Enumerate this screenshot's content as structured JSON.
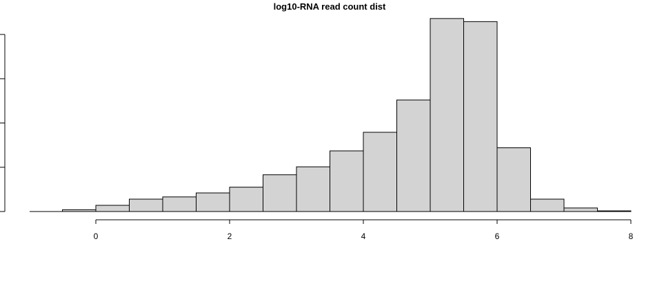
{
  "chart_data": {
    "type": "bar",
    "title": "log10-RNA read count dist",
    "xlabel": "",
    "ylabel": "",
    "xlim": [
      -1,
      8
    ],
    "ylim": [
      0,
      4000
    ],
    "x_ticks": [
      0,
      2,
      4,
      6,
      8
    ],
    "x_tick_labels": [
      "0",
      "2",
      "4",
      "6",
      "8"
    ],
    "y_ticks": [
      0,
      1000,
      2000,
      3000,
      4000
    ],
    "bin_width": 0.5,
    "bins": [
      {
        "start": -0.5,
        "end": 0.0,
        "value": 40
      },
      {
        "start": 0.0,
        "end": 0.5,
        "value": 140
      },
      {
        "start": 0.5,
        "end": 1.0,
        "value": 280
      },
      {
        "start": 1.0,
        "end": 1.5,
        "value": 330
      },
      {
        "start": 1.5,
        "end": 2.0,
        "value": 420
      },
      {
        "start": 2.0,
        "end": 2.5,
        "value": 550
      },
      {
        "start": 2.5,
        "end": 3.0,
        "value": 830
      },
      {
        "start": 3.0,
        "end": 3.5,
        "value": 1010
      },
      {
        "start": 3.5,
        "end": 4.0,
        "value": 1370
      },
      {
        "start": 4.0,
        "end": 4.5,
        "value": 1790
      },
      {
        "start": 4.5,
        "end": 5.0,
        "value": 2520
      },
      {
        "start": 5.0,
        "end": 5.5,
        "value": 4360
      },
      {
        "start": 5.5,
        "end": 6.0,
        "value": 4290
      },
      {
        "start": 6.0,
        "end": 6.5,
        "value": 1440
      },
      {
        "start": 6.5,
        "end": 7.0,
        "value": 280
      },
      {
        "start": 7.0,
        "end": 7.5,
        "value": 80
      },
      {
        "start": 7.5,
        "end": 8.0,
        "value": 15
      }
    ]
  }
}
